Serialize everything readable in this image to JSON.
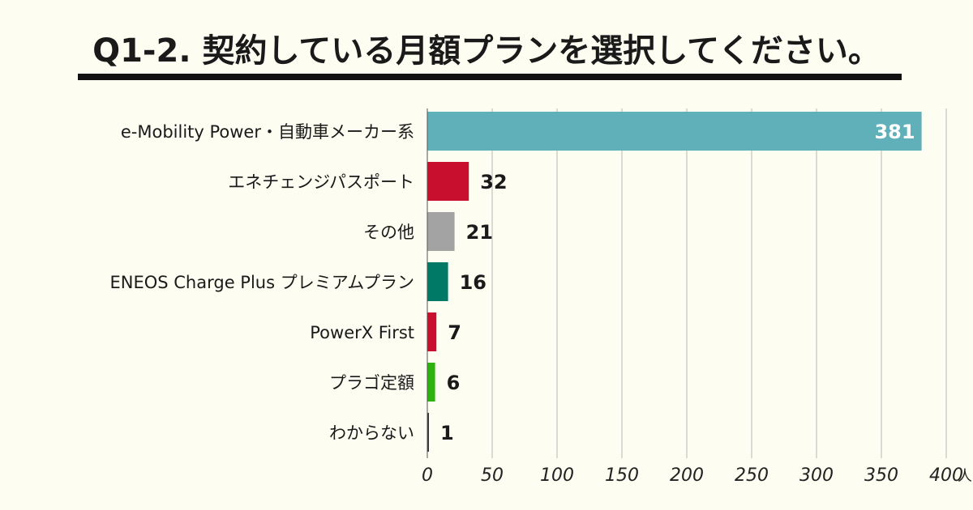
{
  "title": "Q1-2. 契約している月額プランを選択してください。",
  "chart_data": {
    "type": "bar",
    "orientation": "horizontal",
    "title": "Q1-2. 契約している月額プランを選択してください。",
    "categories": [
      "e-Mobility Power・自動車メーカー系",
      "エネチェンジパスポート",
      "その他",
      "ENEOS Charge Plus プレミアムプラン",
      "PowerX First",
      "プラゴ定額",
      "わからない"
    ],
    "values": [
      381,
      32,
      21,
      16,
      7,
      6,
      1
    ],
    "colors": [
      "#5fb0b8",
      "#c8102e",
      "#a3a3a3",
      "#007a66",
      "#c8102e",
      "#2db310",
      "#333333"
    ],
    "xlim": [
      0,
      400
    ],
    "xticks": [
      0,
      50,
      100,
      150,
      200,
      250,
      300,
      350,
      400
    ],
    "x_unit": "人",
    "grid": true,
    "legend": "none"
  }
}
